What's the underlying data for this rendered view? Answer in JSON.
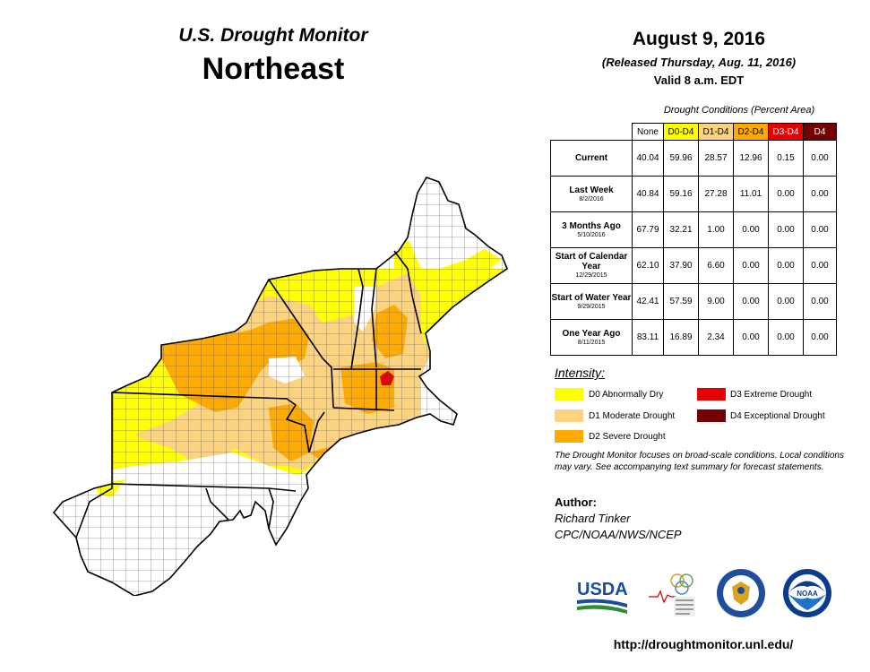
{
  "header": {
    "title": "U.S. Drought Monitor",
    "region": "Northeast",
    "date": "August 9, 2016",
    "released": "(Released Thursday, Aug. 11, 2016)",
    "valid": "Valid  8 a.m. EDT"
  },
  "table": {
    "title": "Drought Conditions (Percent Area)",
    "columns": [
      "None",
      "D0-D4",
      "D1-D4",
      "D2-D4",
      "D3-D4",
      "D4"
    ],
    "rows": [
      {
        "label": "Current",
        "sub": "",
        "values": [
          "40.04",
          "59.96",
          "28.57",
          "12.96",
          "0.15",
          "0.00"
        ]
      },
      {
        "label": "Last Week",
        "sub": "8/2/2016",
        "values": [
          "40.84",
          "59.16",
          "27.28",
          "11.01",
          "0.00",
          "0.00"
        ]
      },
      {
        "label": "3 Months Ago",
        "sub": "5/10/2016",
        "values": [
          "67.79",
          "32.21",
          "1.00",
          "0.00",
          "0.00",
          "0.00"
        ]
      },
      {
        "label": "Start of Calendar Year",
        "sub": "12/29/2015",
        "values": [
          "62.10",
          "37.90",
          "6.60",
          "0.00",
          "0.00",
          "0.00"
        ]
      },
      {
        "label": "Start of Water Year",
        "sub": "9/29/2015",
        "values": [
          "42.41",
          "57.59",
          "9.00",
          "0.00",
          "0.00",
          "0.00"
        ]
      },
      {
        "label": "One Year Ago",
        "sub": "8/11/2015",
        "values": [
          "83.11",
          "16.89",
          "2.34",
          "0.00",
          "0.00",
          "0.00"
        ]
      }
    ]
  },
  "legend": {
    "title": "Intensity:",
    "items": [
      {
        "label": "D0 Abnormally Dry",
        "color": "#ffff00"
      },
      {
        "label": "D1 Moderate Drought",
        "color": "#fcd37f"
      },
      {
        "label": "D2 Severe Drought",
        "color": "#ffaa00"
      },
      {
        "label": "D3 Extreme Drought",
        "color": "#e60000"
      },
      {
        "label": "D4 Exceptional Drought",
        "color": "#730000"
      }
    ]
  },
  "note": "The Drought Monitor focuses on broad-scale conditions. Local conditions may vary. See accompanying text summary for forecast statements.",
  "author": {
    "heading": "Author:",
    "name": "Richard Tinker",
    "org": "CPC/NOAA/NWS/NCEP"
  },
  "logos": {
    "usda": "USDA",
    "ndmc": "National Drought Mitigation Center",
    "noaa": "NOAA"
  },
  "url": "http://droughtmonitor.unl.edu/"
}
